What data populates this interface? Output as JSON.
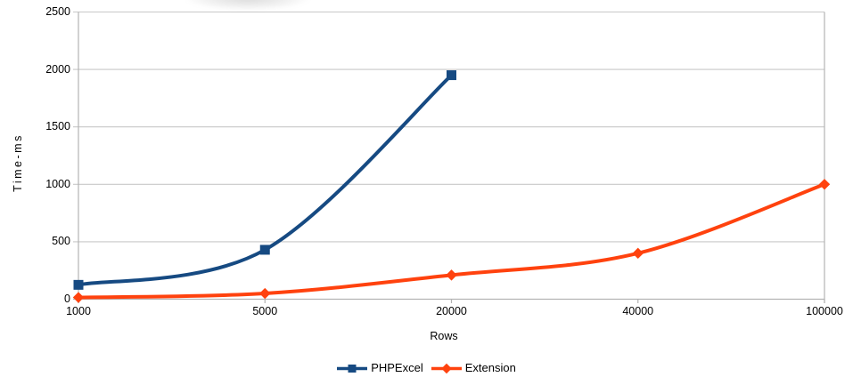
{
  "chart_data": {
    "type": "line",
    "title": "",
    "xlabel": "Rows",
    "ylabel": "Time-ms",
    "categories": [
      "1000",
      "5000",
      "20000",
      "40000",
      "100000"
    ],
    "series": [
      {
        "name": "PHPExcel",
        "color": "#164a82",
        "marker": "square",
        "values": [
          125,
          430,
          1950,
          null,
          null
        ]
      },
      {
        "name": "Extension",
        "color": "#ff420e",
        "marker": "diamond",
        "values": [
          15,
          50,
          210,
          400,
          1000
        ]
      }
    ],
    "ylim": [
      0,
      2500
    ],
    "ytick_step": 500,
    "yticks": [
      "0",
      "500",
      "1000",
      "1500",
      "2000",
      "2500"
    ],
    "grid": "horizontal-only",
    "smooth_lines": true,
    "legend_position": "bottom",
    "colors": {
      "grid": "#c8c8c8",
      "axis": "#b3b3b3",
      "text": "#000000",
      "background": "#ffffff"
    }
  }
}
